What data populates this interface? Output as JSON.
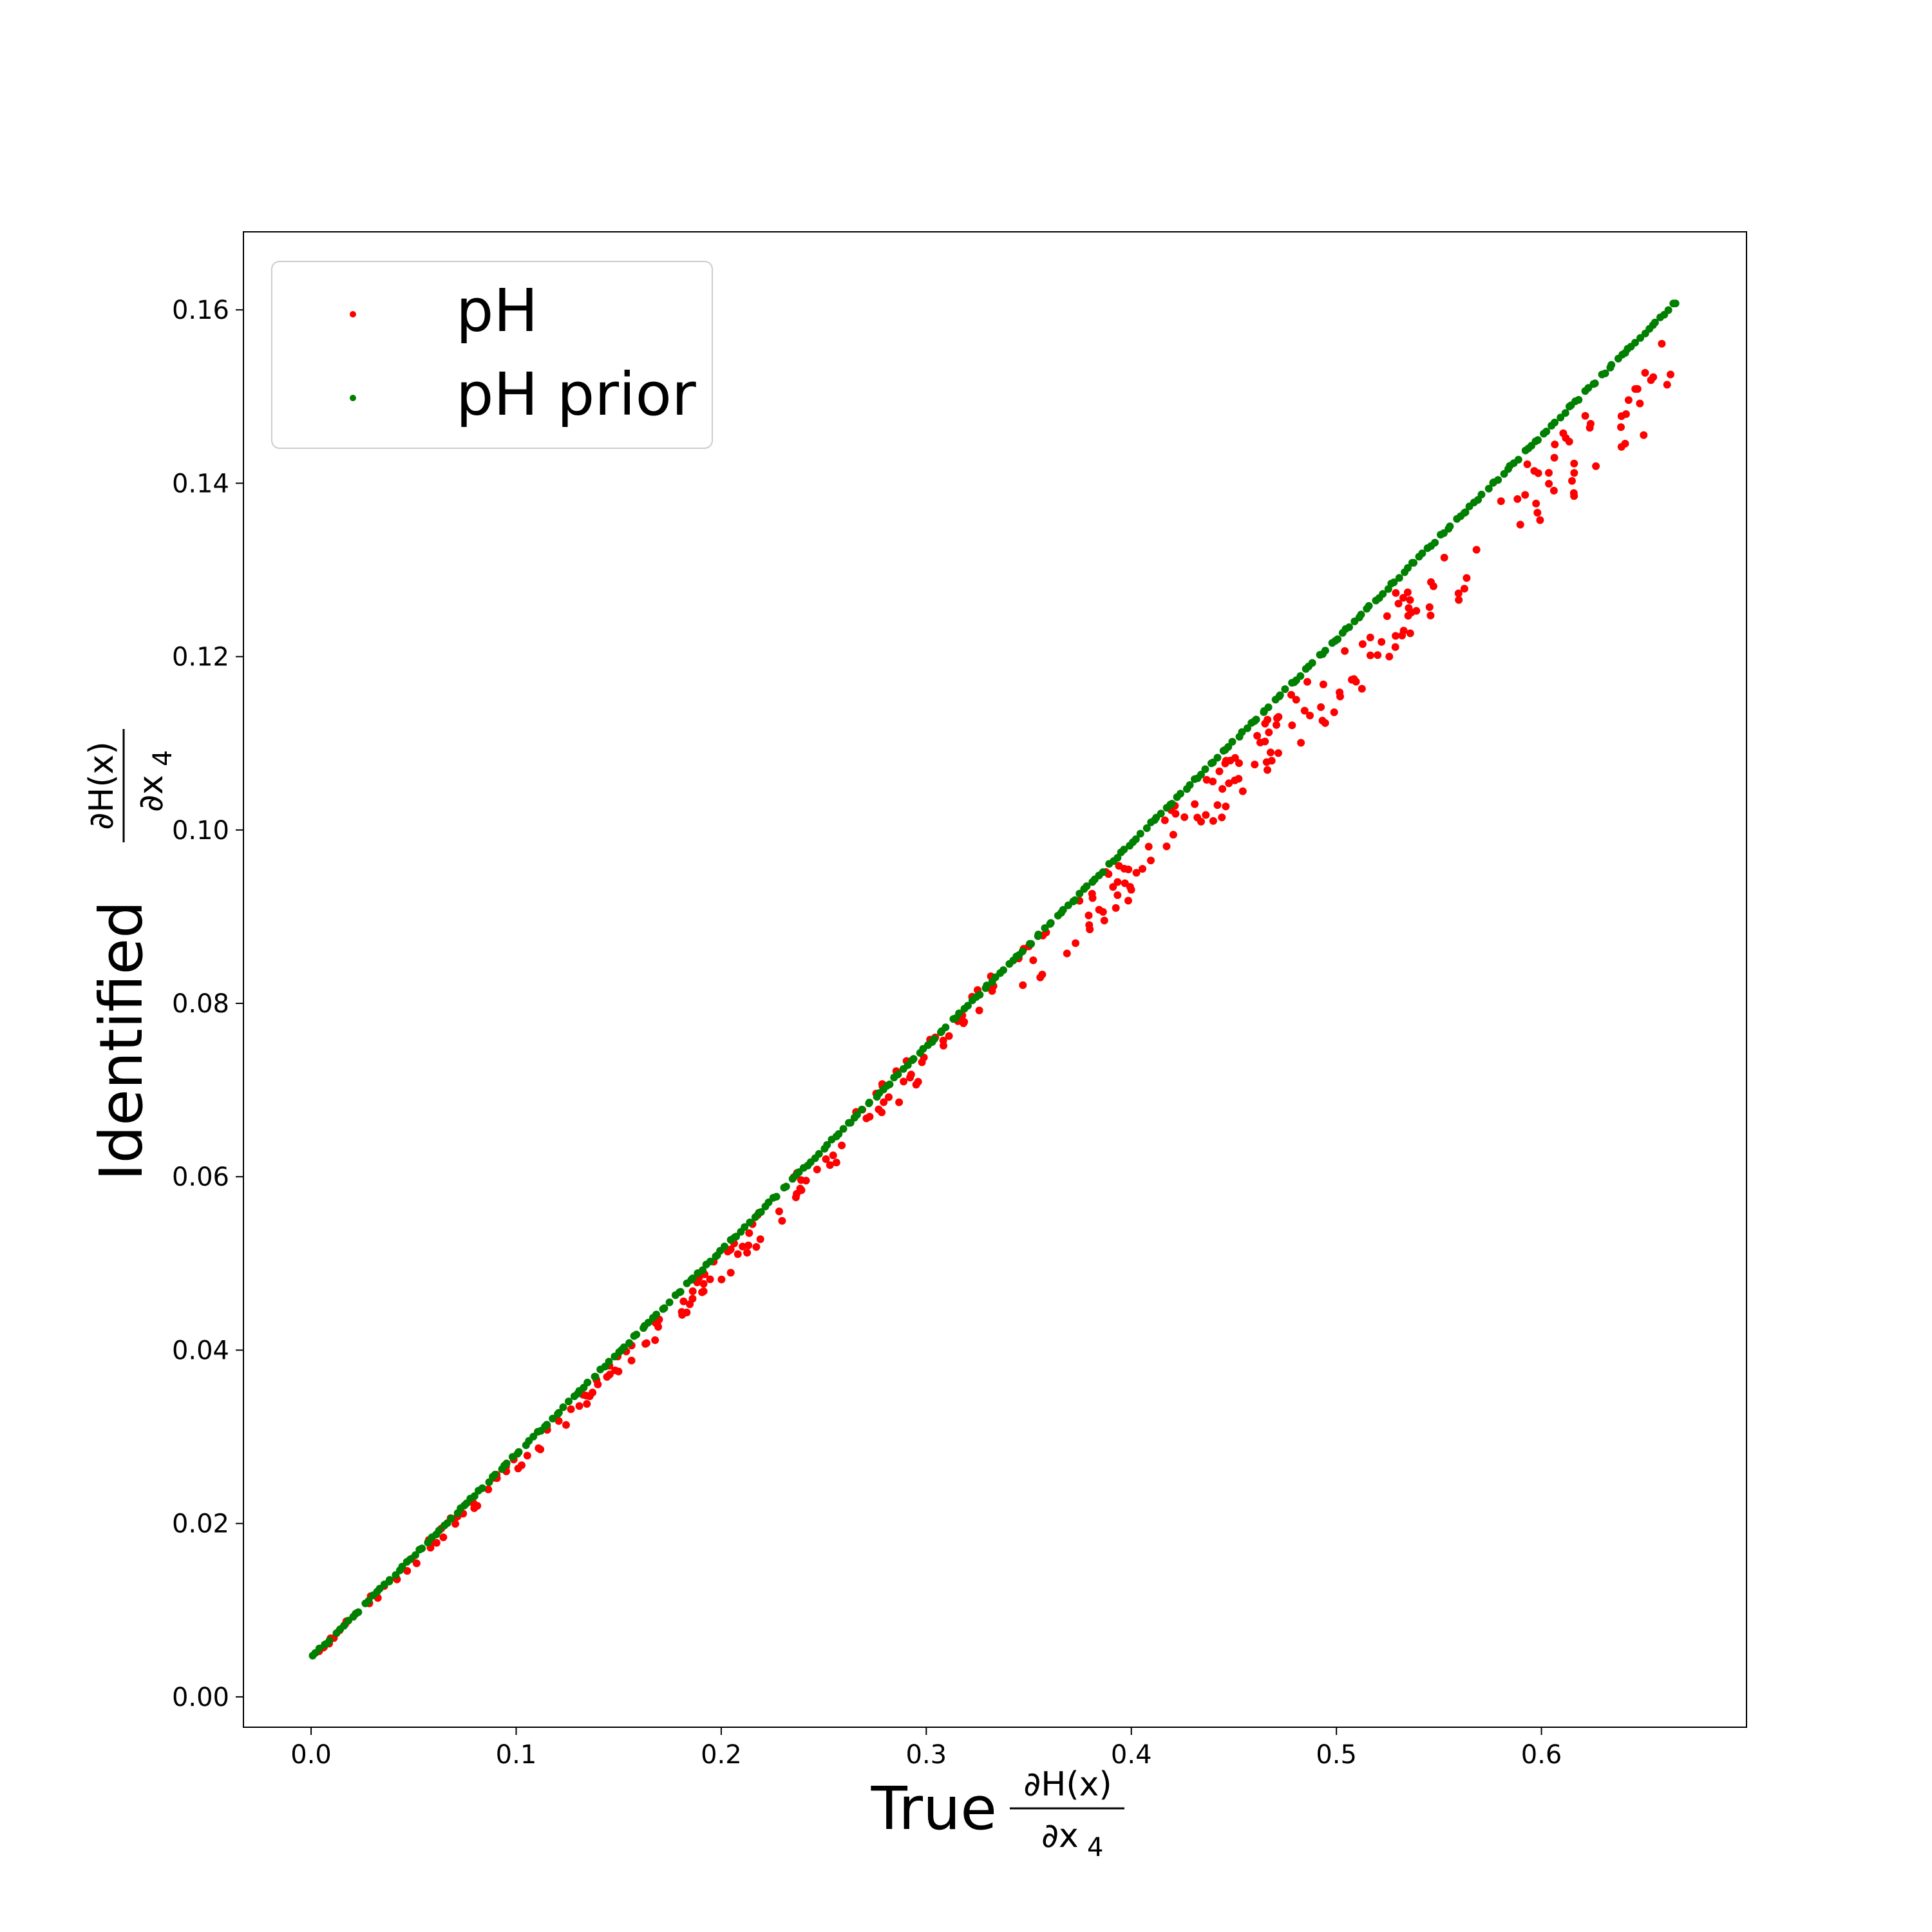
{
  "chart_data": {
    "type": "scatter",
    "xlabel": "True",
    "ylabel": "Identified",
    "derivative": {
      "numerator": "∂H(x)",
      "denominator": "∂x",
      "subscript": "4"
    },
    "xlim": [
      -0.033,
      0.7
    ],
    "ylim": [
      -0.0035,
      0.169
    ],
    "xticks": [
      "0.0",
      "0.1",
      "0.2",
      "0.3",
      "0.4",
      "0.5",
      "0.6"
    ],
    "yticks": [
      "0.00",
      "0.02",
      "0.04",
      "0.06",
      "0.08",
      "0.10",
      "0.12",
      "0.14",
      "0.16"
    ],
    "legend_position": "upper left",
    "series": [
      {
        "name": "pH",
        "color": "#ff0000",
        "x_range": [
          0.0,
          0.666
        ],
        "y_range": [
          0.0045,
          0.153
        ],
        "trend": "y ≈ 0.0045 + 0.2257·x with increasing scatter (spread up to ~±0.004) at larger x",
        "sample_points": [
          [
            0.0,
            0.0045
          ],
          [
            0.1,
            0.027
          ],
          [
            0.2,
            0.0495
          ],
          [
            0.3,
            0.074
          ],
          [
            0.4,
            0.095
          ],
          [
            0.5,
            0.117
          ],
          [
            0.6,
            0.1395
          ],
          [
            0.66,
            0.152
          ]
        ]
      },
      {
        "name": "pH prior",
        "color": "#008000",
        "x_range": [
          0.0,
          0.666
        ],
        "y_range": [
          0.0045,
          0.161
        ],
        "trend": "y ≈ 0.0045 + 0.235·x (tight linear)",
        "sample_points": [
          [
            0.0,
            0.0045
          ],
          [
            0.1,
            0.028
          ],
          [
            0.2,
            0.0515
          ],
          [
            0.3,
            0.075
          ],
          [
            0.4,
            0.0985
          ],
          [
            0.5,
            0.122
          ],
          [
            0.6,
            0.1455
          ],
          [
            0.666,
            0.161
          ]
        ]
      }
    ]
  }
}
